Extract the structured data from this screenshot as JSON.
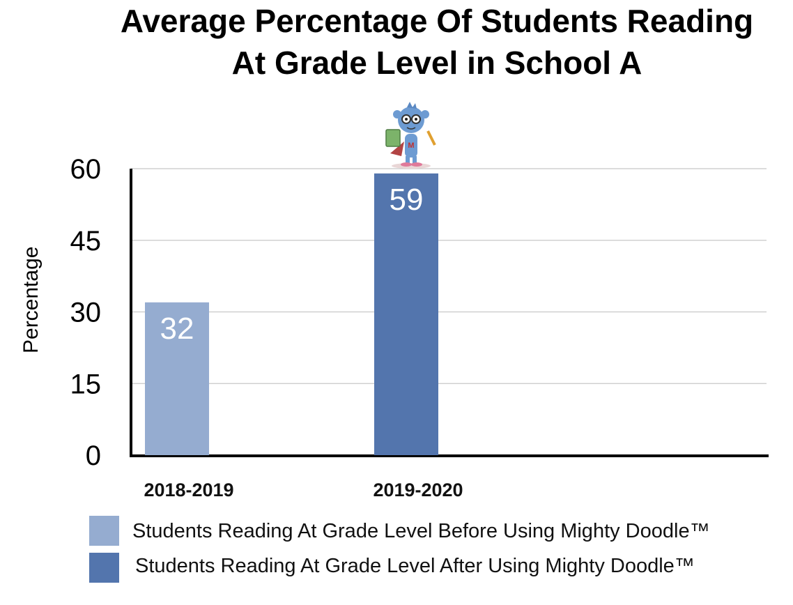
{
  "chart_data": {
    "type": "bar",
    "title_lines": [
      "Average Percentage Of Students Reading",
      "At Grade Level in School A"
    ],
    "ylabel": "Percentage",
    "xlabel": "",
    "ylim": [
      0,
      60
    ],
    "yticks": [
      0,
      15,
      30,
      45,
      60
    ],
    "grid": true,
    "categories": [
      "2018-2019",
      "2019-2020"
    ],
    "series": [
      {
        "name": "Students Reading At Grade Level Before Using Mighty Doodle™",
        "values": [
          32,
          null
        ],
        "color": "#95acd0"
      },
      {
        "name": "Students Reading At Grade Level After Using Mighty Doodle™",
        "values": [
          null,
          59
        ],
        "color": "#5375ad"
      }
    ],
    "data_labels": [
      "32",
      "59"
    ],
    "legend_placement": "bottom",
    "mascot_icon": "mascot-reading-character-icon"
  }
}
